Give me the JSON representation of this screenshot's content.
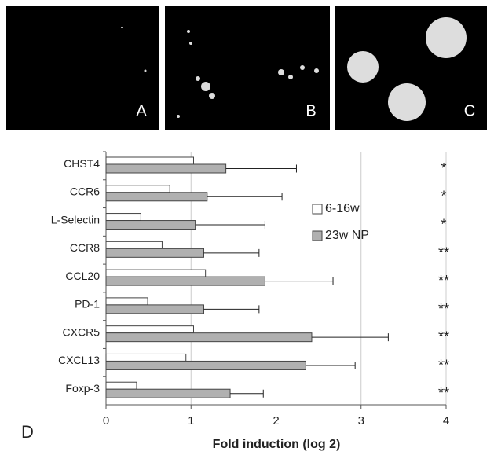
{
  "panels": [
    "A",
    "B",
    "C"
  ],
  "chart_data": {
    "type": "bar",
    "orientation": "horizontal",
    "panel_label": "D",
    "xlabel": "Fold induction (log 2)",
    "categories": [
      "CHST4",
      "CCR6",
      "L-Selectin",
      "CCR8",
      "CCL20",
      "PD-1",
      "CXCR5",
      "CXCL13",
      "Foxp-3"
    ],
    "series": [
      {
        "name": "6-16w",
        "color": "#ffffff",
        "values": [
          1.03,
          0.75,
          0.41,
          0.66,
          1.17,
          0.49,
          1.03,
          0.94,
          0.36
        ]
      },
      {
        "name": "23w NP",
        "color": "#b0b0b0",
        "values": [
          1.41,
          1.19,
          1.05,
          1.15,
          1.87,
          1.15,
          2.42,
          2.35,
          1.46
        ],
        "errors": [
          0.83,
          0.88,
          0.82,
          0.65,
          0.8,
          0.65,
          0.9,
          0.58,
          0.39
        ]
      }
    ],
    "annotations": [
      "*",
      "*",
      "*",
      "**",
      "**",
      "**",
      "**",
      "**",
      "**"
    ],
    "xlim": [
      0,
      4
    ],
    "xticks": [
      0,
      1,
      2,
      3,
      4
    ],
    "grid": true
  }
}
